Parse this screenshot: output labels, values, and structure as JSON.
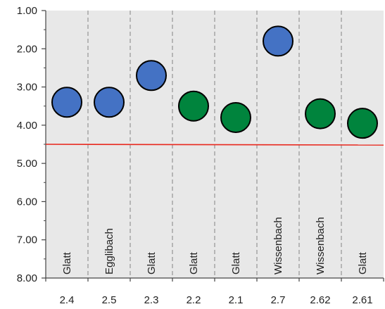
{
  "chart_data": {
    "type": "scatter",
    "categories": [
      "2.4",
      "2.5",
      "2.3",
      "2.2",
      "2.1",
      "2.7",
      "2.62",
      "2.61"
    ],
    "names": [
      "Glatt",
      "Egglibach",
      "Glatt",
      "Glatt",
      "Glatt",
      "Wissenbach",
      "Wissenbach",
      "Glatt"
    ],
    "values": [
      3.4,
      3.4,
      2.7,
      3.5,
      3.8,
      1.8,
      3.7,
      3.95
    ],
    "point_colors": [
      "#4472C4",
      "#4472C4",
      "#4472C4",
      "#00843D",
      "#00843D",
      "#4472C4",
      "#00843D",
      "#00843D"
    ],
    "yticks": [
      "1.00",
      "2.00",
      "3.00",
      "4.00",
      "5.00",
      "6.00",
      "7.00",
      "8.00"
    ],
    "ylim": [
      1,
      8
    ],
    "y_inverted": true,
    "threshold": {
      "y_start": 4.5,
      "y_end": 4.52,
      "color": "#E8281E"
    },
    "plot_background": "#E8E8E8",
    "grid": "vertical-dashed",
    "title": "",
    "xlabel": "",
    "ylabel": ""
  }
}
